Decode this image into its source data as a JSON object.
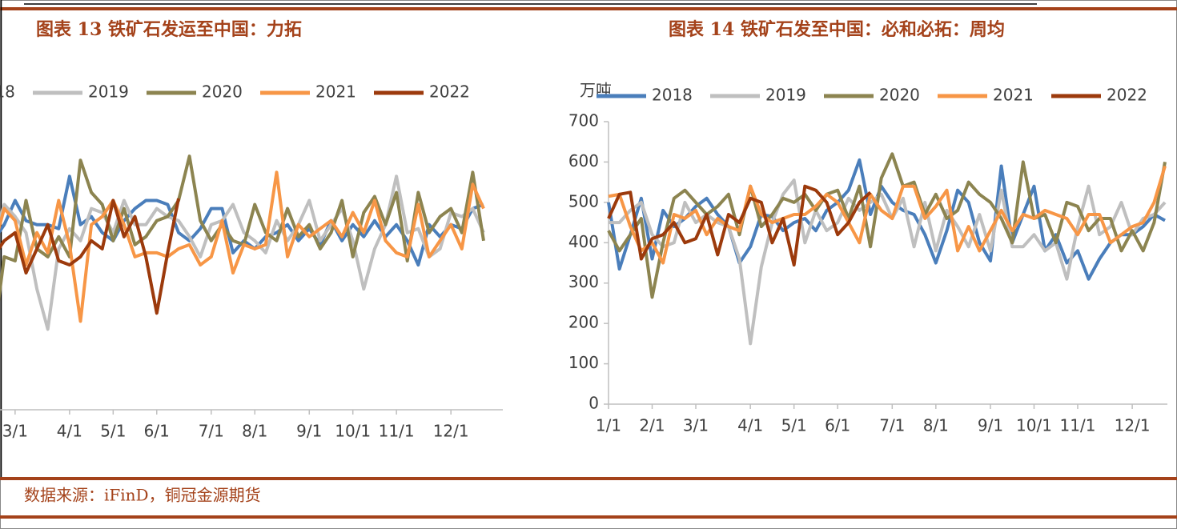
{
  "chart_data": [
    {
      "type": "line",
      "title": "图表 13  铁矿石发运至中国：力拓",
      "ylim": [
        0,
        700
      ],
      "categories": [
        null,
        null,
        null,
        null,
        null,
        null,
        null,
        null,
        "3/1",
        null,
        null,
        null,
        null,
        "4/1",
        null,
        null,
        null,
        "5/1",
        null,
        null,
        null,
        "6/1",
        null,
        null,
        null,
        null,
        "7/1",
        null,
        null,
        null,
        "8/1",
        null,
        null,
        null,
        null,
        "9/1",
        null,
        null,
        null,
        "10/1",
        null,
        null,
        null,
        "11/1",
        null,
        null,
        null,
        null,
        "12/1",
        null,
        null,
        null
      ],
      "series": [
        {
          "name": "2018",
          "color": "#4a7ebb",
          "values": [
            450,
            420,
            430,
            460,
            470,
            440,
            420,
            460,
            520,
            470,
            460,
            460,
            450,
            580,
            460,
            480,
            440,
            420,
            470,
            500,
            520,
            520,
            510,
            440,
            420,
            450,
            500,
            500,
            390,
            420,
            400,
            430,
            440,
            460,
            420,
            450,
            410,
            470,
            420,
            460,
            430,
            470,
            430,
            460,
            420,
            360,
            460,
            430,
            460,
            450,
            500,
            510
          ]
        },
        {
          "name": "2019",
          "color": "#bfbfbf",
          "values": [
            460,
            470,
            480,
            450,
            470,
            400,
            420,
            510,
            480,
            440,
            300,
            200,
            400,
            450,
            420,
            500,
            490,
            440,
            520,
            460,
            460,
            500,
            480,
            470,
            430,
            380,
            460,
            470,
            510,
            440,
            420,
            390,
            470,
            420,
            460,
            520,
            420,
            460,
            500,
            420,
            300,
            400,
            460,
            580,
            440,
            450,
            380,
            400,
            490,
            480,
            500,
            440
          ]
        },
        {
          "name": "2020",
          "color": "#8c8450",
          "values": [
            450,
            420,
            400,
            430,
            440,
            460,
            170,
            380,
            370,
            520,
            400,
            380,
            430,
            380,
            620,
            540,
            510,
            420,
            500,
            410,
            430,
            470,
            480,
            520,
            630,
            470,
            420,
            460,
            420,
            410,
            510,
            440,
            420,
            500,
            430,
            460,
            400,
            440,
            520,
            380,
            490,
            530,
            460,
            540,
            370,
            540,
            440,
            480,
            500,
            440,
            590,
            420
          ]
        },
        {
          "name": "2021",
          "color": "#f79646",
          "values": [
            470,
            450,
            460,
            480,
            470,
            440,
            400,
            500,
            470,
            360,
            440,
            390,
            520,
            410,
            220,
            460,
            480,
            520,
            460,
            380,
            390,
            390,
            380,
            400,
            410,
            360,
            380,
            470,
            340,
            410,
            400,
            410,
            590,
            380,
            460,
            430,
            450,
            470,
            430,
            490,
            440,
            520,
            420,
            390,
            380,
            510,
            380,
            420,
            460,
            400,
            560,
            500
          ]
        },
        {
          "name": "2022",
          "color": "#9c3a0c",
          "values": [
            400,
            390,
            380,
            350,
            400,
            420,
            380,
            420,
            440,
            340,
            400,
            460,
            370,
            360,
            380,
            420,
            400,
            520,
            430,
            480,
            380,
            240,
            390,
            525,
            null,
            null,
            null,
            null,
            null,
            null,
            null,
            null,
            null,
            null,
            null,
            null,
            null,
            null,
            null,
            null,
            null,
            null,
            null,
            null,
            null,
            null,
            null,
            null,
            null,
            null,
            null,
            null
          ]
        }
      ]
    },
    {
      "type": "line",
      "title": "图表 14 铁矿石发至中国：必和必拓：周均",
      "y_label": "万吨",
      "ylim": [
        0,
        700
      ],
      "yticks": [
        0,
        100,
        200,
        300,
        400,
        500,
        600,
        700
      ],
      "categories": [
        "1/1",
        null,
        null,
        null,
        "2/1",
        null,
        null,
        null,
        "3/1",
        null,
        null,
        null,
        null,
        "4/1",
        null,
        null,
        null,
        "5/1",
        null,
        null,
        null,
        "6/1",
        null,
        null,
        null,
        null,
        "7/1",
        null,
        null,
        null,
        "8/1",
        null,
        null,
        null,
        null,
        "9/1",
        null,
        null,
        null,
        "10/1",
        null,
        null,
        null,
        "11/1",
        null,
        null,
        null,
        null,
        "12/1",
        null,
        null,
        null
      ],
      "series": [
        {
          "name": "2018",
          "color": "#4a7ebb",
          "values": [
            500,
            335,
            420,
            510,
            360,
            480,
            440,
            460,
            490,
            510,
            470,
            440,
            350,
            390,
            470,
            465,
            430,
            450,
            460,
            430,
            480,
            500,
            530,
            605,
            470,
            540,
            500,
            480,
            470,
            420,
            350,
            430,
            530,
            500,
            400,
            355,
            590,
            400,
            470,
            540,
            380,
            420,
            350,
            380,
            310,
            360,
            400,
            420,
            420,
            440,
            470,
            455
          ]
        },
        {
          "name": "2019",
          "color": "#bfbfbf",
          "values": [
            450,
            450,
            480,
            500,
            420,
            390,
            400,
            500,
            450,
            470,
            450,
            440,
            360,
            150,
            340,
            450,
            520,
            555,
            400,
            480,
            430,
            450,
            510,
            480,
            500,
            520,
            460,
            510,
            390,
            500,
            380,
            480,
            440,
            390,
            470,
            380,
            530,
            390,
            390,
            420,
            380,
            400,
            310,
            440,
            540,
            420,
            440,
            500,
            420,
            460,
            470,
            500
          ]
        },
        {
          "name": "2020",
          "color": "#8c8450",
          "values": [
            430,
            380,
            420,
            460,
            265,
            400,
            510,
            530,
            500,
            470,
            490,
            520,
            420,
            540,
            440,
            470,
            510,
            500,
            520,
            480,
            520,
            530,
            460,
            540,
            390,
            560,
            620,
            540,
            550,
            470,
            520,
            460,
            480,
            550,
            520,
            500,
            460,
            400,
            600,
            460,
            470,
            400,
            500,
            490,
            430,
            460,
            460,
            380,
            430,
            380,
            450,
            600
          ]
        },
        {
          "name": "2021",
          "color": "#f79646",
          "values": [
            515,
            520,
            440,
            380,
            400,
            350,
            470,
            460,
            480,
            420,
            460,
            440,
            430,
            540,
            470,
            450,
            460,
            470,
            470,
            490,
            520,
            500,
            450,
            400,
            520,
            480,
            460,
            540,
            540,
            460,
            490,
            530,
            380,
            440,
            380,
            430,
            480,
            430,
            470,
            460,
            480,
            470,
            460,
            420,
            470,
            470,
            400,
            420,
            440,
            450,
            500,
            590
          ]
        },
        {
          "name": "2022",
          "color": "#9c3a0c",
          "values": [
            460,
            520,
            525,
            360,
            410,
            420,
            450,
            400,
            410,
            470,
            370,
            470,
            450,
            510,
            500,
            400,
            460,
            345,
            540,
            530,
            500,
            420,
            450,
            500,
            525,
            null,
            null,
            null,
            null,
            null,
            null,
            null,
            null,
            null,
            null,
            null,
            null,
            null,
            null,
            null,
            null,
            null,
            null,
            null,
            null,
            null,
            null,
            null,
            null,
            null,
            null,
            null
          ]
        }
      ]
    }
  ],
  "footer": {
    "source": "数据来源：iFinD，铜冠金源期货"
  }
}
